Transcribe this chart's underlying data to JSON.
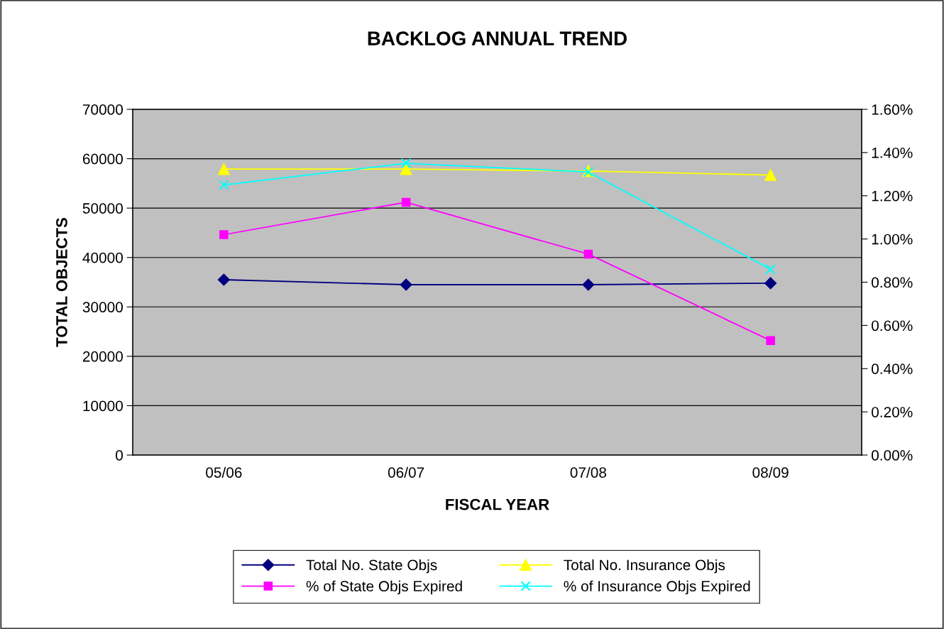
{
  "chart_data": {
    "type": "line",
    "title": "BACKLOG ANNUAL TREND",
    "xlabel": "FISCAL YEAR",
    "ylabel": "TOTAL OBJECTS",
    "categories": [
      "05/06",
      "06/07",
      "07/08",
      "08/09"
    ],
    "ylim": [
      0,
      70000
    ],
    "yticks": [
      0,
      10000,
      20000,
      30000,
      40000,
      50000,
      60000,
      70000
    ],
    "y2lim": [
      0,
      1.6
    ],
    "y2ticks": [
      {
        "value": 0,
        "label": "0.00%"
      },
      {
        "value": 0.2,
        "label": "0.20%"
      },
      {
        "value": 0.4,
        "label": "0.40%"
      },
      {
        "value": 0.6,
        "label": "0.60%"
      },
      {
        "value": 0.8,
        "label": "0.80%"
      },
      {
        "value": 1.0,
        "label": "1.00%"
      },
      {
        "value": 1.2,
        "label": "1.20%"
      },
      {
        "value": 1.4,
        "label": "1.40%"
      },
      {
        "value": 1.6,
        "label": "1.60%"
      }
    ],
    "grid": "y",
    "legend": "bottom",
    "series": [
      {
        "name": "Total No. State Objs",
        "color": "#000080",
        "marker": "diamond",
        "values": [
          35500,
          34500,
          34500,
          34800
        ]
      },
      {
        "name": "Total No. Insurance Objs",
        "color": "#ffff00",
        "marker": "triangle",
        "values": [
          57900,
          57900,
          57500,
          56700
        ]
      },
      {
        "name": "% of State Objs Expired",
        "color": "#ff00ff",
        "marker": "square",
        "axis": "y2",
        "values": [
          1.02,
          1.17,
          0.93,
          0.53
        ]
      },
      {
        "name": "% of Insurance Objs Expired",
        "color": "#00ffff",
        "marker": "cross",
        "axis": "y2",
        "values": [
          1.25,
          1.35,
          1.31,
          0.86
        ]
      }
    ]
  }
}
